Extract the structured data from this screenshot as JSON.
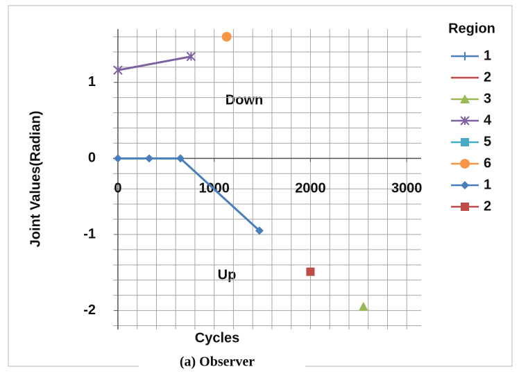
{
  "chart_data": {
    "type": "scatter",
    "x_label": "Cycles",
    "y_label": "Joint Values(Radian)",
    "caption": "(a) Observer",
    "legend_title": "Region",
    "annotations": [
      "Down",
      "Up"
    ],
    "xlim": [
      -50,
      3150
    ],
    "ylim": [
      -2.25,
      1.7
    ],
    "xticks": [
      0,
      1000,
      2000,
      3000
    ],
    "yticks": [
      1,
      0,
      -1,
      -2
    ],
    "grid": true,
    "xgrid_step": 200,
    "ygrid_step": 0.2,
    "series": [
      {
        "name": "1",
        "color": "#4a7ebb",
        "marker": "plus",
        "line": true,
        "x": [],
        "y": []
      },
      {
        "name": "2",
        "color": "#be4b48",
        "marker": "none",
        "line": true,
        "x": [],
        "y": []
      },
      {
        "name": "3",
        "color": "#98b954",
        "marker": "triangle",
        "line": true,
        "x": [
          2550
        ],
        "y": [
          -1.95
        ]
      },
      {
        "name": "4",
        "color": "#7d60a0",
        "marker": "star",
        "line": true,
        "x": [
          0,
          760
        ],
        "y": [
          1.16,
          1.34
        ]
      },
      {
        "name": "5",
        "color": "#46aac5",
        "marker": "square",
        "line": true,
        "x": [],
        "y": []
      },
      {
        "name": "6",
        "color": "#f79646",
        "marker": "circle",
        "line": true,
        "x": [
          1130
        ],
        "y": [
          1.6
        ]
      },
      {
        "name": "1",
        "color": "#4a7ebb",
        "marker": "diamond",
        "line": true,
        "x": [
          0,
          325,
          650,
          1470
        ],
        "y": [
          0,
          0,
          0,
          -0.95
        ]
      },
      {
        "name": "2",
        "color": "#be4b48",
        "marker": "square",
        "line": false,
        "x": [
          2000
        ],
        "y": [
          -1.49
        ]
      }
    ]
  }
}
